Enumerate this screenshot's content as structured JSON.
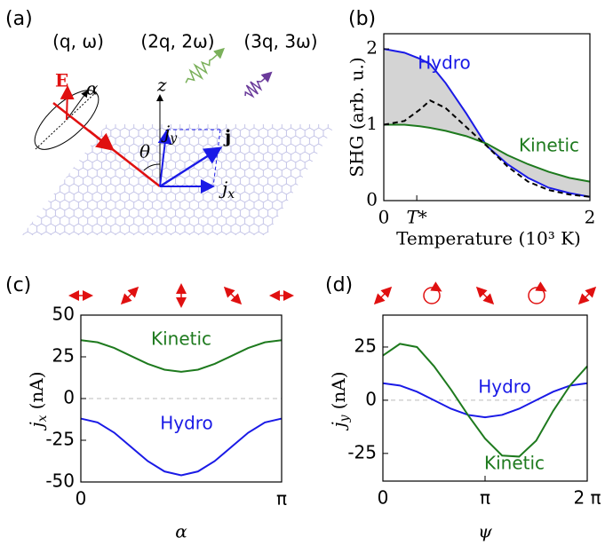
{
  "diagram": {
    "panel_label": "(a)",
    "wave_labels": [
      "(q, ω)",
      "(2q, 2ω)",
      "(3q, 3ω)"
    ],
    "field_label": "E",
    "angle_alpha": "α",
    "z_label": "z",
    "angle_theta": "θ",
    "jy_label": {
      "symbol": "j",
      "sub": "y"
    },
    "jx_label": {
      "symbol": "j",
      "sub": "x"
    },
    "j_label": "j"
  },
  "chart_data": [
    {
      "type": "line",
      "panel_label": "(b)",
      "xlabel": "Temperature (10³ K)",
      "ylabel": "SHG (arb. u.)",
      "x": [
        0,
        0.2,
        0.35,
        0.45,
        0.6,
        0.8,
        1.0,
        1.2,
        1.4,
        1.6,
        1.8,
        2.0
      ],
      "series": [
        {
          "name": "Hydro",
          "color": "#1a1ae6",
          "values": [
            2,
            1.95,
            1.87,
            1.8,
            1.55,
            1.15,
            0.72,
            0.48,
            0.3,
            0.17,
            0.1,
            0.05
          ]
        },
        {
          "name": "Kinetic",
          "color": "#1e7a1e",
          "values": [
            1,
            1,
            0.98,
            0.96,
            0.92,
            0.85,
            0.75,
            0.6,
            0.48,
            0.38,
            0.3,
            0.25
          ]
        },
        {
          "color": "#000000",
          "dash": true,
          "values": [
            1,
            1.05,
            1.2,
            1.32,
            1.22,
            0.97,
            0.72,
            0.45,
            0.25,
            0.14,
            0.08,
            0.05
          ]
        }
      ],
      "shaded": true,
      "xlim": [
        0,
        2
      ],
      "ylim": [
        0,
        2.2
      ],
      "xticks": [
        0,
        {
          "value": 0.32,
          "label": "T*"
        },
        2
      ],
      "yticks": [
        0,
        1,
        2
      ]
    },
    {
      "type": "line",
      "panel_label": "(c)",
      "xlabel": "α",
      "ylabel": {
        "symbol": "j",
        "sub": "x",
        "unit": "(nA)"
      },
      "x": [
        0,
        0.2618,
        0.5236,
        0.7854,
        1.0472,
        1.309,
        1.5708,
        1.8326,
        2.0944,
        2.3562,
        2.618,
        2.8798,
        3.1416
      ],
      "series": [
        {
          "name": "Kinetic",
          "color": "#1e7a1e",
          "values": [
            35,
            33.7,
            30.3,
            25.5,
            20.8,
            17.3,
            16,
            17.3,
            20.8,
            25.5,
            30.3,
            33.7,
            35
          ]
        },
        {
          "name": "Hydro",
          "color": "#1a1ae6",
          "values": [
            -12,
            -14.3,
            -20.5,
            -29,
            -37.5,
            -43.7,
            -46,
            -43.7,
            -37.5,
            -29,
            -20.5,
            -14.3,
            -12
          ]
        }
      ],
      "zero_line": true,
      "xlim": [
        0,
        3.1416
      ],
      "ylim": [
        -50,
        50
      ],
      "xticks": [
        0,
        {
          "value": 3.1416,
          "label": "π"
        }
      ],
      "yticks": [
        -50,
        -25,
        0,
        25,
        50
      ]
    },
    {
      "type": "line",
      "panel_label": "(d)",
      "xlabel": "ψ",
      "ylabel": {
        "symbol": "j",
        "sub": "y",
        "unit": "(nA)"
      },
      "x": [
        0,
        0.5236,
        1.0472,
        1.5708,
        2.0944,
        2.618,
        3.1416,
        3.6652,
        4.1888,
        4.7124,
        5.236,
        5.7596,
        6.2832
      ],
      "series": [
        {
          "name": "Hydro",
          "color": "#1a1ae6",
          "values": [
            8,
            6.9,
            4,
            0,
            -4,
            -6.9,
            -8,
            -6.9,
            -4,
            0,
            4,
            6.9,
            8
          ]
        },
        {
          "name": "Kinetic",
          "color": "#1e7a1e",
          "values": [
            21,
            26.5,
            25,
            16,
            5,
            -7,
            -18,
            -26,
            -26.5,
            -19,
            -5,
            7,
            16
          ]
        }
      ],
      "zero_line": true,
      "xlim": [
        0,
        6.2832
      ],
      "ylim": [
        -38,
        40
      ],
      "xticks": [
        0,
        {
          "value": 3.1416,
          "label": "π"
        },
        {
          "value": 6.2832,
          "label": "2 π"
        }
      ],
      "yticks": [
        -25,
        0,
        25
      ]
    }
  ]
}
